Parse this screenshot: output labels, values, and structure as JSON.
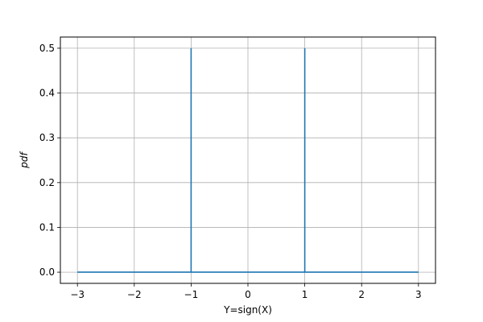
{
  "chart_data": {
    "type": "line",
    "xlabel": "Y=sign(X)",
    "ylabel": "pdf",
    "xlim": [
      -3.3,
      3.3
    ],
    "ylim": [
      -0.025,
      0.525
    ],
    "xticks": [
      -3,
      -2,
      -1,
      0,
      1,
      2,
      3
    ],
    "yticks": [
      0.0,
      0.1,
      0.2,
      0.3,
      0.4,
      0.5
    ],
    "xtick_labels": [
      "−3",
      "−2",
      "−1",
      "0",
      "1",
      "2",
      "3"
    ],
    "ytick_labels": [
      "0.0",
      "0.1",
      "0.2",
      "0.3",
      "0.4",
      "0.5"
    ],
    "grid": true,
    "series": [
      {
        "x": [
          -3,
          -1,
          -1,
          -1,
          1,
          1,
          1,
          3
        ],
        "y": [
          0,
          0,
          0.5,
          0,
          0,
          0.5,
          0,
          0
        ],
        "color": "#1f77b4"
      }
    ]
  }
}
